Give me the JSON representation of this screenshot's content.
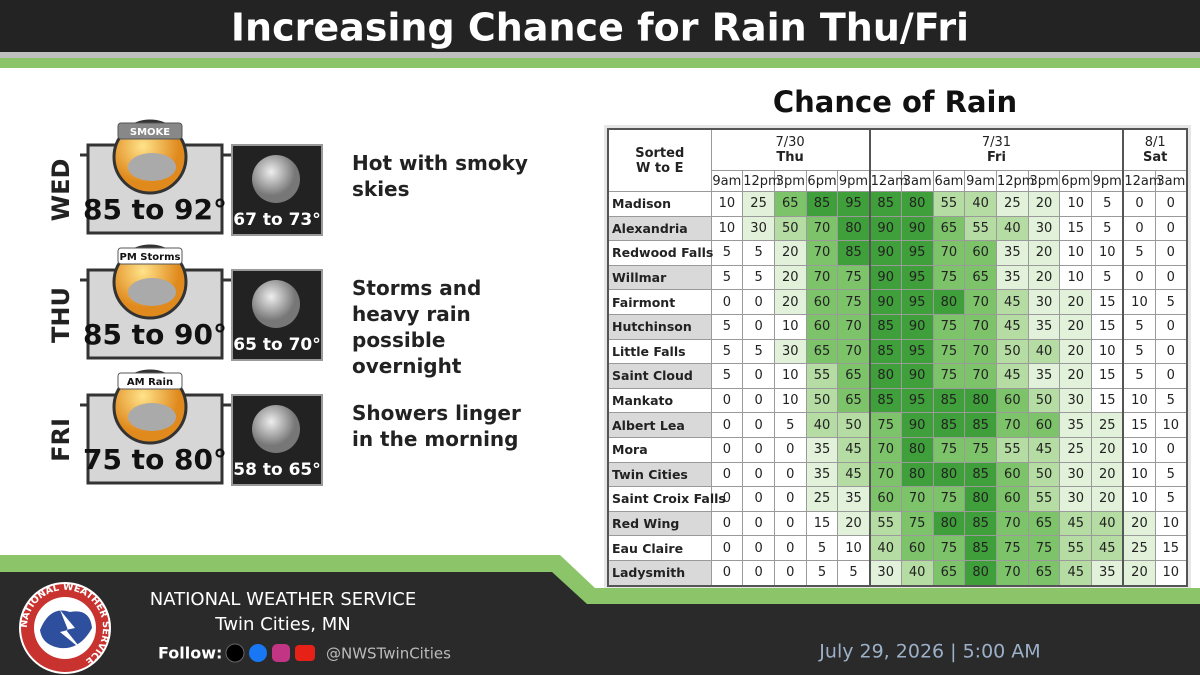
{
  "header": {
    "title": "Increasing Chance for Rain Thu/Fri"
  },
  "forecast": [
    {
      "day": "WED",
      "icon_label": "SMOKE",
      "high": "85 to 92°",
      "low": "67 to 73°",
      "description": "Hot with smoky skies"
    },
    {
      "day": "THU",
      "icon_label": "PM Storms",
      "high": "85 to 90°",
      "low": "65 to 70°",
      "description": "Storms and heavy rain possible overnight"
    },
    {
      "day": "FRI",
      "icon_label": "AM Rain",
      "high": "75 to 80°",
      "low": "58 to 65°",
      "description": "Showers linger in the morning"
    }
  ],
  "table": {
    "title": "Chance of Rain",
    "corner": [
      "Sorted",
      "W to E"
    ],
    "groups": [
      {
        "date": "7/30",
        "day": "Thu",
        "times": [
          "9am",
          "12pm",
          "3pm",
          "6pm",
          "9pm"
        ]
      },
      {
        "date": "7/31",
        "day": "Fri",
        "times": [
          "12am",
          "3am",
          "6am",
          "9am",
          "12pm",
          "3pm",
          "6pm",
          "9pm"
        ]
      },
      {
        "date": "8/1",
        "day": "Sat",
        "times": [
          "12am",
          "3am"
        ]
      }
    ],
    "rows": [
      {
        "name": "Madison",
        "values": [
          10,
          25,
          65,
          85,
          95,
          85,
          80,
          55,
          40,
          25,
          20,
          10,
          5,
          0,
          0
        ]
      },
      {
        "name": "Alexandria",
        "values": [
          10,
          30,
          50,
          70,
          80,
          90,
          90,
          65,
          55,
          40,
          30,
          15,
          5,
          0,
          0
        ]
      },
      {
        "name": "Redwood Falls",
        "values": [
          5,
          5,
          20,
          70,
          85,
          90,
          95,
          70,
          60,
          35,
          20,
          10,
          10,
          5,
          0
        ]
      },
      {
        "name": "Willmar",
        "values": [
          5,
          5,
          20,
          70,
          75,
          90,
          95,
          75,
          65,
          35,
          20,
          10,
          5,
          0,
          0
        ]
      },
      {
        "name": "Fairmont",
        "values": [
          0,
          0,
          20,
          60,
          75,
          90,
          95,
          80,
          70,
          45,
          30,
          20,
          15,
          10,
          5
        ]
      },
      {
        "name": "Hutchinson",
        "values": [
          5,
          0,
          10,
          60,
          70,
          85,
          90,
          75,
          70,
          45,
          35,
          20,
          15,
          5,
          0
        ]
      },
      {
        "name": "Little Falls",
        "values": [
          5,
          5,
          30,
          65,
          70,
          85,
          95,
          75,
          70,
          50,
          40,
          20,
          10,
          5,
          0
        ]
      },
      {
        "name": "Saint Cloud",
        "values": [
          5,
          0,
          10,
          55,
          65,
          80,
          90,
          75,
          70,
          45,
          35,
          20,
          15,
          5,
          0
        ]
      },
      {
        "name": "Mankato",
        "values": [
          0,
          0,
          10,
          50,
          65,
          85,
          95,
          85,
          80,
          60,
          50,
          30,
          15,
          10,
          5
        ]
      },
      {
        "name": "Albert Lea",
        "values": [
          0,
          0,
          5,
          40,
          50,
          75,
          90,
          85,
          85,
          70,
          60,
          35,
          25,
          15,
          10
        ]
      },
      {
        "name": "Mora",
        "values": [
          0,
          0,
          0,
          35,
          45,
          70,
          80,
          75,
          75,
          55,
          45,
          25,
          20,
          10,
          0
        ]
      },
      {
        "name": "Twin Cities",
        "values": [
          0,
          0,
          0,
          35,
          45,
          70,
          80,
          80,
          85,
          60,
          50,
          30,
          20,
          10,
          5
        ]
      },
      {
        "name": "Saint Croix Falls",
        "values": [
          0,
          0,
          0,
          25,
          35,
          60,
          70,
          75,
          80,
          60,
          55,
          30,
          20,
          10,
          5
        ]
      },
      {
        "name": "Red Wing",
        "values": [
          0,
          0,
          0,
          15,
          20,
          55,
          75,
          80,
          85,
          70,
          65,
          45,
          40,
          20,
          10
        ]
      },
      {
        "name": "Eau Claire",
        "values": [
          0,
          0,
          0,
          5,
          10,
          40,
          60,
          75,
          85,
          75,
          75,
          55,
          45,
          25,
          15
        ]
      },
      {
        "name": "Ladysmith",
        "values": [
          0,
          0,
          0,
          5,
          5,
          30,
          40,
          65,
          80,
          70,
          65,
          45,
          35,
          20,
          10
        ]
      }
    ]
  },
  "footer": {
    "logo_text": "NATIONAL WEATHER SERVICE",
    "org": "NATIONAL WEATHER SERVICE",
    "office": "Twin Cities, MN",
    "follow": "Follow:",
    "handle": "@NWSTwinCities",
    "date": "July 29, 2026 | 5:00 AM"
  }
}
